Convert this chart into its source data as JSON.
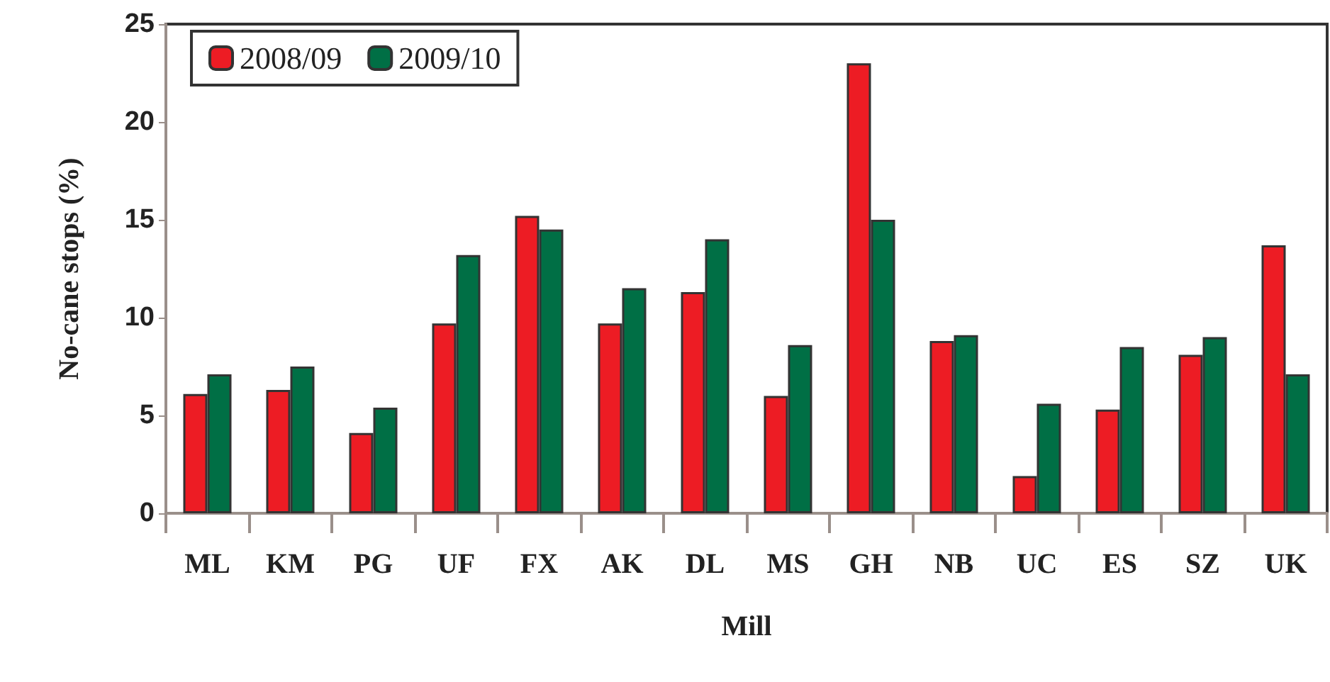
{
  "chart_data": {
    "type": "bar",
    "xlabel": "Mill",
    "ylabel": "No-cane stops (%)",
    "categories": [
      "ML",
      "KM",
      "PG",
      "UF",
      "FX",
      "AK",
      "DL",
      "MS",
      "GH",
      "NB",
      "UC",
      "ES",
      "SZ",
      "UK"
    ],
    "series": [
      {
        "name": "2008/09",
        "color": "#ed1c24",
        "values": [
          6.1,
          6.3,
          4.1,
          9.7,
          15.2,
          9.7,
          11.3,
          6.0,
          23.0,
          8.8,
          1.9,
          5.3,
          8.1,
          13.7
        ]
      },
      {
        "name": "2009/10",
        "color": "#006f45",
        "values": [
          7.1,
          7.5,
          5.4,
          13.2,
          14.5,
          11.5,
          14.0,
          8.6,
          15.0,
          9.1,
          5.6,
          8.5,
          9.0,
          7.1
        ]
      }
    ],
    "ylim": [
      0,
      25
    ],
    "yticks": [
      0,
      5,
      10,
      15,
      20,
      25
    ],
    "grid": false,
    "legend": "top left"
  }
}
